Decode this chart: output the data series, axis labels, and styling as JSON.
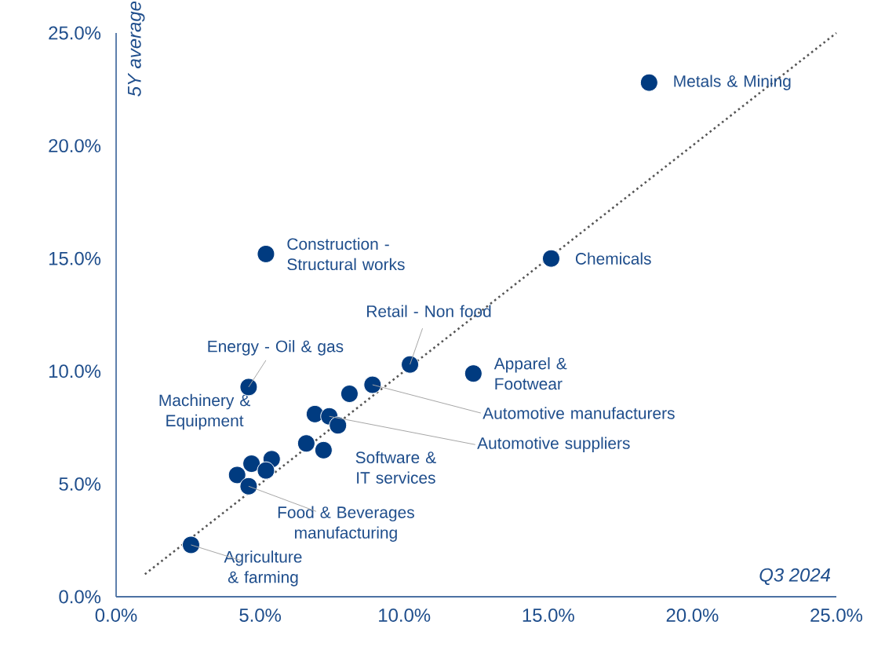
{
  "chart_data": {
    "type": "scatter",
    "xlabel": "Q3 2024",
    "ylabel": "5Y average",
    "xlim": [
      0,
      25
    ],
    "ylim": [
      0,
      25
    ],
    "xticks": [
      {
        "value": 0,
        "label": "0.0%"
      },
      {
        "value": 5,
        "label": "5.0%"
      },
      {
        "value": 10,
        "label": "10.0%"
      },
      {
        "value": 15,
        "label": "15.0%"
      },
      {
        "value": 20,
        "label": "20.0%"
      },
      {
        "value": 25,
        "label": "25.0%"
      }
    ],
    "yticks": [
      {
        "value": 0,
        "label": "0.0%"
      },
      {
        "value": 5,
        "label": "5.0%"
      },
      {
        "value": 10,
        "label": "10.0%"
      },
      {
        "value": 15,
        "label": "15.0%"
      },
      {
        "value": 20,
        "label": "20.0%"
      },
      {
        "value": 25,
        "label": "25.0%"
      }
    ],
    "grid": false,
    "series": [
      {
        "type": "line",
        "color": "#555555",
        "line_style": "dotted",
        "marker": "none",
        "x": [
          1,
          25
        ],
        "values": [
          1,
          25
        ]
      },
      {
        "type": "scatter",
        "color": "#003b80",
        "marker": "circle",
        "x": [
          18.5,
          15.1,
          5.2,
          10.2,
          12.4,
          4.6,
          8.9,
          8.1,
          6.9,
          7.4,
          7.7,
          7.2,
          6.6,
          4.7,
          5.4,
          5.2,
          4.2,
          4.6,
          2.6
        ],
        "values": [
          22.8,
          15.0,
          15.2,
          10.3,
          9.9,
          9.3,
          9.4,
          9.0,
          8.1,
          8.0,
          7.6,
          6.5,
          6.8,
          5.9,
          6.1,
          5.6,
          5.4,
          4.9,
          2.3
        ]
      }
    ],
    "annotations": [
      {
        "text": "Metals & Mining",
        "x": 18.5,
        "y": 22.8
      },
      {
        "text": "Chemicals",
        "x": 15.1,
        "y": 15.0
      },
      {
        "text": "Construction - Structural works",
        "x": 5.2,
        "y": 15.2
      },
      {
        "text": "Retail - Non food",
        "x": 10.2,
        "y": 10.3
      },
      {
        "text": "Apparel & Footwear",
        "x": 12.4,
        "y": 9.9
      },
      {
        "text": "Energy - Oil & gas",
        "x": 4.6,
        "y": 9.3
      },
      {
        "text": "Automotive manufacturers",
        "x": 8.9,
        "y": 9.4
      },
      {
        "text": "Automotive suppliers",
        "x": 7.4,
        "y": 8.0
      },
      {
        "text": "Software & IT services",
        "x": 7.2,
        "y": 6.5
      },
      {
        "text": "Machinery & Equipment",
        "x": 4.7,
        "y": 5.9
      },
      {
        "text": "Food & Beverages manufacturing",
        "x": 4.6,
        "y": 4.9
      },
      {
        "text": "Agriculture & farming",
        "x": 2.6,
        "y": 2.3
      }
    ]
  }
}
